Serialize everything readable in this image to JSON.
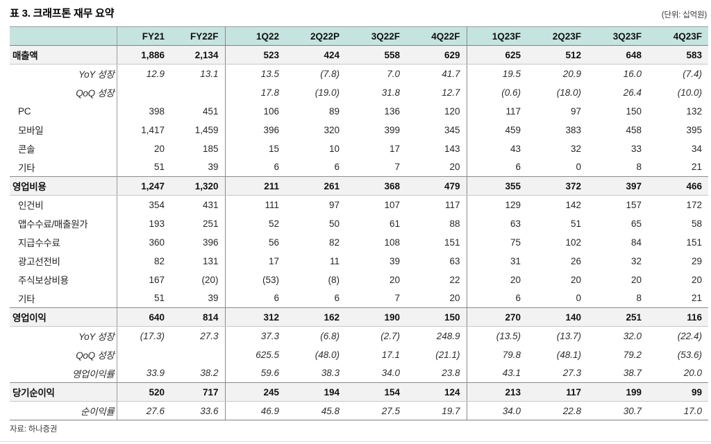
{
  "page": {
    "title": "표 3. 크래프톤 재무 요약",
    "unit_note": "(단위: 십억원)",
    "source": "자료: 하나증권"
  },
  "colors": {
    "header_bg": "#c5e4df",
    "section_row_bg": "#f2f2f2",
    "border_dark": "#808080",
    "border_light": "#c8c8c8"
  },
  "table": {
    "columns": [
      "",
      "FY21",
      "FY22F",
      "1Q22",
      "2Q22P",
      "3Q22F",
      "4Q22F",
      "1Q23F",
      "2Q23F",
      "3Q23F",
      "4Q23F"
    ],
    "rows": [
      {
        "label": "매출액",
        "style": "section",
        "values": [
          "1,886",
          "2,134",
          "523",
          "424",
          "558",
          "629",
          "625",
          "512",
          "648",
          "583"
        ]
      },
      {
        "label": "YoY 성장",
        "style": "ratio",
        "values": [
          "12.9",
          "13.1",
          "13.5",
          "(7.8)",
          "7.0",
          "41.7",
          "19.5",
          "20.9",
          "16.0",
          "(7.4)"
        ]
      },
      {
        "label": "QoQ 성장",
        "style": "ratio",
        "values": [
          "",
          "",
          "17.8",
          "(19.0)",
          "31.8",
          "12.7",
          "(0.6)",
          "(18.0)",
          "26.4",
          "(10.0)"
        ]
      },
      {
        "label": "PC",
        "style": "sub",
        "values": [
          "398",
          "451",
          "106",
          "89",
          "136",
          "120",
          "117",
          "97",
          "150",
          "132"
        ]
      },
      {
        "label": "모바일",
        "style": "sub",
        "values": [
          "1,417",
          "1,459",
          "396",
          "320",
          "399",
          "345",
          "459",
          "383",
          "458",
          "395"
        ]
      },
      {
        "label": "콘솔",
        "style": "sub",
        "values": [
          "20",
          "185",
          "15",
          "10",
          "17",
          "143",
          "43",
          "32",
          "33",
          "34"
        ]
      },
      {
        "label": "기타",
        "style": "sub",
        "values": [
          "51",
          "39",
          "6",
          "6",
          "7",
          "20",
          "6",
          "0",
          "8",
          "21"
        ]
      },
      {
        "label": "영업비용",
        "style": "section",
        "values": [
          "1,247",
          "1,320",
          "211",
          "261",
          "368",
          "479",
          "355",
          "372",
          "397",
          "466"
        ]
      },
      {
        "label": "인건비",
        "style": "sub",
        "values": [
          "354",
          "431",
          "111",
          "97",
          "107",
          "117",
          "129",
          "142",
          "157",
          "172"
        ]
      },
      {
        "label": "앱수수료/매출원가",
        "style": "sub",
        "values": [
          "193",
          "251",
          "52",
          "50",
          "61",
          "88",
          "63",
          "51",
          "65",
          "58"
        ]
      },
      {
        "label": "지급수수료",
        "style": "sub",
        "values": [
          "360",
          "396",
          "56",
          "82",
          "108",
          "151",
          "75",
          "102",
          "84",
          "151"
        ]
      },
      {
        "label": "광고선전비",
        "style": "sub",
        "values": [
          "82",
          "131",
          "17",
          "11",
          "39",
          "63",
          "31",
          "26",
          "32",
          "29"
        ]
      },
      {
        "label": "주식보상비용",
        "style": "sub",
        "values": [
          "167",
          "(20)",
          "(53)",
          "(8)",
          "20",
          "22",
          "20",
          "20",
          "20",
          "20"
        ]
      },
      {
        "label": "기타",
        "style": "sub",
        "values": [
          "51",
          "39",
          "6",
          "6",
          "7",
          "20",
          "6",
          "0",
          "8",
          "21"
        ]
      },
      {
        "label": "영업이익",
        "style": "section",
        "values": [
          "640",
          "814",
          "312",
          "162",
          "190",
          "150",
          "270",
          "140",
          "251",
          "116"
        ]
      },
      {
        "label": "YoY 성장",
        "style": "ratio",
        "values": [
          "(17.3)",
          "27.3",
          "37.3",
          "(6.8)",
          "(2.7)",
          "248.9",
          "(13.5)",
          "(13.7)",
          "32.0",
          "(22.4)"
        ]
      },
      {
        "label": "QoQ 성장",
        "style": "ratio",
        "values": [
          "",
          "",
          "625.5",
          "(48.0)",
          "17.1",
          "(21.1)",
          "79.8",
          "(48.1)",
          "79.2",
          "(53.6)"
        ]
      },
      {
        "label": "영업이익률",
        "style": "ratio",
        "values": [
          "33.9",
          "38.2",
          "59.6",
          "38.3",
          "34.0",
          "23.8",
          "43.1",
          "27.3",
          "38.7",
          "20.0"
        ]
      },
      {
        "label": "당기순이익",
        "style": "section",
        "values": [
          "520",
          "717",
          "245",
          "194",
          "154",
          "124",
          "213",
          "117",
          "199",
          "99"
        ]
      },
      {
        "label": "순이익률",
        "style": "ratio",
        "values": [
          "27.6",
          "33.6",
          "46.9",
          "45.8",
          "27.5",
          "19.7",
          "34.0",
          "22.8",
          "30.7",
          "17.0"
        ]
      }
    ]
  }
}
